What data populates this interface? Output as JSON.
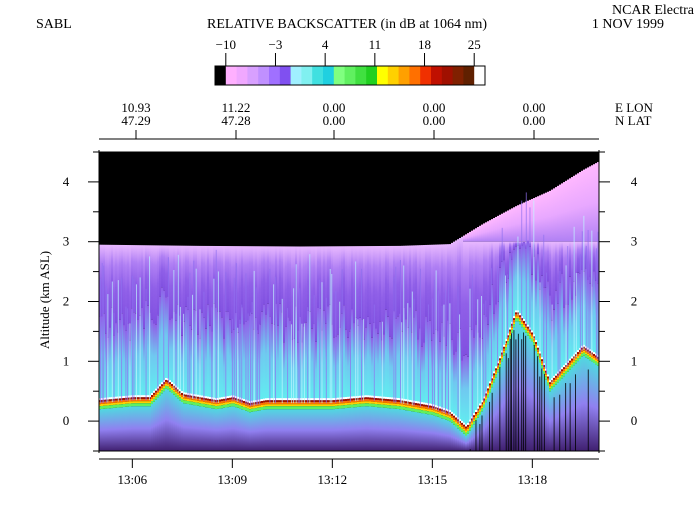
{
  "header": {
    "left_label": "SABL",
    "title": "RELATIVE BACKSCATTER (in dB at 1064 nm)",
    "right_line1": "NCAR Electra",
    "right_line2": "1 NOV 1999"
  },
  "colorbar": {
    "tick_labels": [
      "−10",
      "−3",
      "4",
      "11",
      "18",
      "25"
    ],
    "tick_values": [
      -10,
      -3,
      4,
      11,
      18,
      25
    ],
    "colors": [
      "#000000",
      "#ffb0ff",
      "#f0a8ff",
      "#d8a0ff",
      "#c090ff",
      "#a070ff",
      "#8050f0",
      "#a0f0ff",
      "#80f0f0",
      "#40e0e0",
      "#20d0e0",
      "#80ff80",
      "#60f060",
      "#40e040",
      "#20d020",
      "#ffff00",
      "#ffd000",
      "#ffa000",
      "#ff7000",
      "#f03000",
      "#c01000",
      "#a01000",
      "#802000",
      "#602000",
      "#ffffff"
    ]
  },
  "position_axis": {
    "row_labels": [
      "E LON",
      "N LAT"
    ],
    "columns": [
      {
        "lon": "10.93",
        "lat": "47.29"
      },
      {
        "lon": "11.22",
        "lat": "47.28"
      },
      {
        "lon": "0.00",
        "lat": "0.00"
      },
      {
        "lon": "0.00",
        "lat": "0.00"
      },
      {
        "lon": "0.00",
        "lat": "0.00"
      }
    ]
  },
  "chart_data": {
    "type": "heatmap",
    "title": "RELATIVE BACKSCATTER (in dB at 1064 nm)",
    "xlabel": "",
    "ylabel": "Altitude (km ASL)",
    "x_ticks": [
      "13:06",
      "13:09",
      "13:12",
      "13:15",
      "13:18"
    ],
    "x_tick_minutes": [
      786,
      789,
      792,
      795,
      798
    ],
    "xlim_minutes": [
      785.0,
      800.0
    ],
    "y_ticks": [
      0,
      1,
      2,
      3,
      4
    ],
    "ylim": [
      -0.5,
      4.5
    ],
    "color_range_db": [
      -10,
      25
    ],
    "aircraft_altitude_km": [
      [
        785.0,
        2.95
      ],
      [
        788.0,
        2.93
      ],
      [
        791.0,
        2.92
      ],
      [
        794.0,
        2.93
      ],
      [
        795.5,
        2.96
      ],
      [
        796.5,
        3.3
      ],
      [
        797.5,
        3.6
      ],
      [
        798.5,
        3.85
      ],
      [
        799.5,
        4.2
      ],
      [
        800.0,
        4.35
      ]
    ],
    "surface_return_km": [
      [
        785.0,
        0.3
      ],
      [
        786.0,
        0.35
      ],
      [
        786.5,
        0.35
      ],
      [
        787.0,
        0.65
      ],
      [
        787.5,
        0.4
      ],
      [
        788.5,
        0.3
      ],
      [
        789.0,
        0.35
      ],
      [
        789.5,
        0.25
      ],
      [
        790.0,
        0.3
      ],
      [
        791.0,
        0.3
      ],
      [
        792.0,
        0.3
      ],
      [
        793.0,
        0.35
      ],
      [
        794.0,
        0.3
      ],
      [
        795.0,
        0.2
      ],
      [
        795.5,
        0.1
      ],
      [
        796.0,
        -0.15
      ],
      [
        796.5,
        0.3
      ],
      [
        797.0,
        1.0
      ],
      [
        797.5,
        1.8
      ],
      [
        798.0,
        1.4
      ],
      [
        798.5,
        0.6
      ],
      [
        799.0,
        0.9
      ],
      [
        799.5,
        1.2
      ],
      [
        800.0,
        1.0
      ]
    ]
  }
}
